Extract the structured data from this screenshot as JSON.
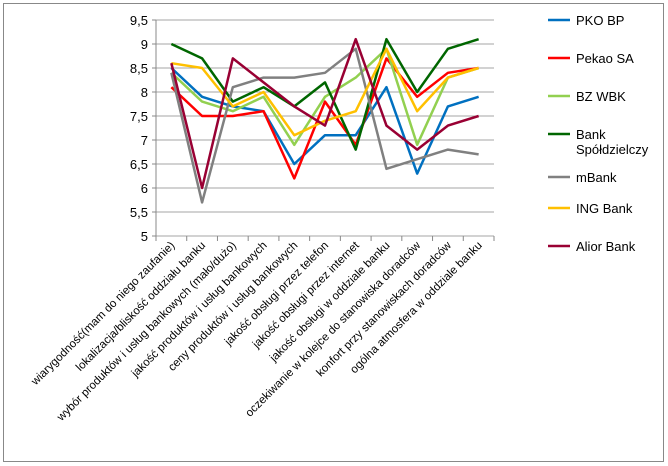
{
  "chart_data": {
    "type": "line",
    "title": "",
    "xlabel": "",
    "ylabel": "",
    "ylim": [
      5,
      9.5
    ],
    "yticks": [
      "5",
      "5,5",
      "6",
      "6,5",
      "7",
      "7,5",
      "8",
      "8,5",
      "9",
      "9,5"
    ],
    "ytick_values": [
      5,
      5.5,
      6,
      6.5,
      7,
      7.5,
      8,
      8.5,
      9,
      9.5
    ],
    "grid": true,
    "legend_position": "right",
    "categories": [
      "wiarygodność(mam do niego zaufanie)",
      "lokalizacja/bliskość oddziału banku",
      "wybór produktów i usług bankowych (mało/dużo)",
      "jakość produktów i usług bankowych",
      "ceny produktów i usług bankowych",
      "jakość obsługi przez telefon",
      "jakość obsługi przez internet",
      "jakość obsługi w oddziale banku",
      "oczekiwanie w kolejce do stanowiska doradców",
      "konfort przy stanowiskach doradców",
      "ogólna atmosfera w oddziale banku"
    ],
    "series": [
      {
        "name": "PKO BP",
        "color": "#0070C0",
        "values": [
          8.5,
          7.9,
          7.7,
          7.6,
          6.5,
          7.1,
          7.1,
          8.1,
          6.3,
          7.7,
          7.9
        ]
      },
      {
        "name": "Pekao SA",
        "color": "#FF0000",
        "values": [
          8.1,
          7.5,
          7.5,
          7.6,
          6.2,
          7.8,
          6.9,
          8.7,
          7.9,
          8.4,
          8.5
        ]
      },
      {
        "name": "BZ WBK",
        "color": "#92D050",
        "values": [
          8.4,
          7.8,
          7.6,
          7.9,
          6.9,
          7.9,
          8.3,
          8.9,
          6.9,
          8.3,
          8.5
        ]
      },
      {
        "name": "Bank Spółdzielczy",
        "legend_lines": [
          "Bank",
          "Spółdzielczy"
        ],
        "color": "#006600",
        "values": [
          9.0,
          8.7,
          7.8,
          8.1,
          7.7,
          8.2,
          6.8,
          9.1,
          8.0,
          8.9,
          9.1
        ]
      },
      {
        "name": "mBank",
        "color": "#808080",
        "values": [
          8.4,
          5.7,
          8.1,
          8.3,
          8.3,
          8.4,
          8.9,
          6.4,
          6.6,
          6.8,
          6.7
        ]
      },
      {
        "name": "ING Bank",
        "color": "#FFC000",
        "values": [
          8.6,
          8.5,
          7.7,
          8.0,
          7.1,
          7.4,
          7.6,
          8.9,
          7.6,
          8.3,
          8.5
        ]
      },
      {
        "name": "Alior Bank",
        "color": "#990033",
        "values": [
          8.6,
          6.0,
          8.7,
          8.2,
          7.7,
          7.3,
          9.1,
          7.3,
          6.8,
          7.3,
          7.5
        ]
      }
    ]
  }
}
